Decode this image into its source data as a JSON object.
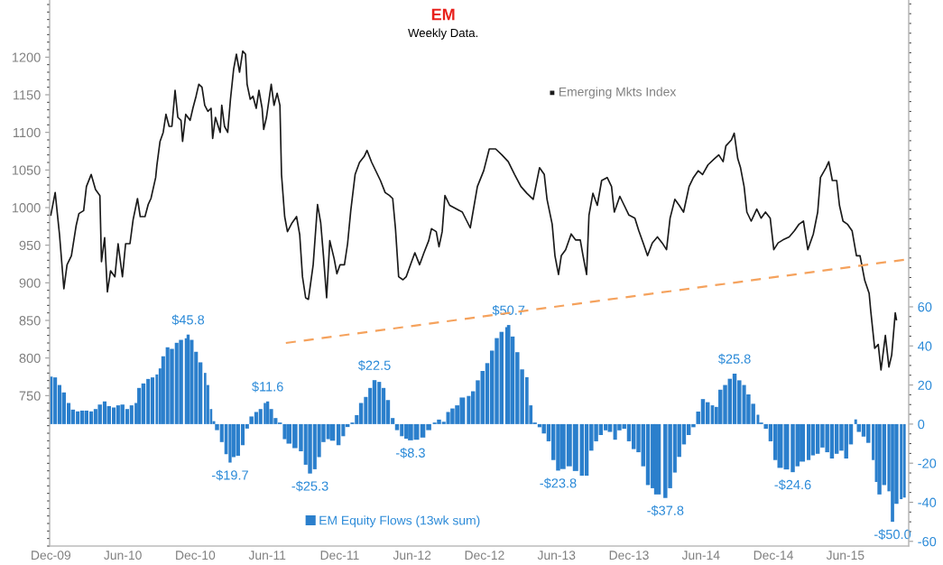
{
  "chart_data": {
    "type": "line",
    "title": "EM",
    "subtitle": "Weekly Data.",
    "xlim": [
      "2009-11-28",
      "2015-11-08"
    ],
    "xticks": [
      {
        "value": "2009-12-01",
        "label": "Dec-09"
      },
      {
        "value": "2010-06-01",
        "label": "Jun-10"
      },
      {
        "value": "2010-12-01",
        "label": "Dec-10"
      },
      {
        "value": "2011-06-01",
        "label": "Jun-11"
      },
      {
        "value": "2011-12-01",
        "label": "Dec-11"
      },
      {
        "value": "2012-06-01",
        "label": "Jun-12"
      },
      {
        "value": "2012-12-01",
        "label": "Dec-12"
      },
      {
        "value": "2013-06-01",
        "label": "Jun-13"
      },
      {
        "value": "2013-12-01",
        "label": "Dec-13"
      },
      {
        "value": "2014-06-01",
        "label": "Jun-14"
      },
      {
        "value": "2014-12-01",
        "label": "Dec-14"
      },
      {
        "value": "2015-06-01",
        "label": "Jun-15"
      }
    ],
    "ylim": [
      550,
      1276
    ],
    "yticks": [
      750,
      800,
      850,
      900,
      950,
      1000,
      1050,
      1100,
      1150,
      1200
    ],
    "y2lim": [
      -62.4,
      217
    ],
    "y2ticks": [
      -60,
      -40,
      -20,
      0,
      20,
      40,
      60
    ],
    "legend": "bottom",
    "grid": false,
    "series": [
      {
        "name": "Emerging Mkts Index",
        "color": "#1a1a1a",
        "x": [
          "2009-12-01",
          "2009-12-12",
          "2009-12-23",
          "2010-01-03",
          "2010-01-11",
          "2010-01-22",
          "2010-02-03",
          "2010-02-10",
          "2010-02-22",
          "2010-03-01",
          "2010-03-13",
          "2010-03-24",
          "2010-04-04",
          "2010-04-08",
          "2010-04-16",
          "2010-04-23",
          "2010-05-01",
          "2010-05-12",
          "2010-05-20",
          "2010-05-31",
          "2010-06-08",
          "2010-06-19",
          "2010-06-27",
          "2010-07-08",
          "2010-07-15",
          "2010-07-27",
          "2010-08-04",
          "2010-08-11",
          "2010-08-23",
          "2010-08-26",
          "2010-09-03",
          "2010-09-11",
          "2010-09-18",
          "2010-09-26",
          "2010-10-03",
          "2010-10-11",
          "2010-10-18",
          "2010-10-26",
          "2010-10-30",
          "2010-11-07",
          "2010-11-18",
          "2010-11-25",
          "2010-12-03",
          "2010-12-10",
          "2010-12-18",
          "2010-12-25",
          "2011-01-02",
          "2011-01-10",
          "2011-01-14",
          "2011-01-21",
          "2011-02-02",
          "2011-02-06",
          "2011-02-13",
          "2011-02-21",
          "2011-02-28",
          "2011-03-08",
          "2011-03-15",
          "2011-03-23",
          "2011-03-31",
          "2011-04-07",
          "2011-04-11",
          "2011-04-19",
          "2011-04-26",
          "2011-05-04",
          "2011-05-11",
          "2011-05-19",
          "2011-05-23",
          "2011-05-30",
          "2011-06-11",
          "2011-06-18",
          "2011-06-26",
          "2011-07-03",
          "2011-07-07",
          "2011-07-15",
          "2011-07-22",
          "2011-08-03",
          "2011-08-14",
          "2011-08-22",
          "2011-08-29",
          "2011-09-06",
          "2011-09-13",
          "2011-09-25",
          "2011-10-06",
          "2011-10-14",
          "2011-10-21",
          "2011-10-29",
          "2011-11-06",
          "2011-11-17",
          "2011-11-24",
          "2011-12-02",
          "2011-12-13",
          "2011-12-21",
          "2011-12-29",
          "2012-01-09",
          "2012-01-20",
          "2012-02-01",
          "2012-02-08",
          "2012-02-20",
          "2012-03-02",
          "2012-03-13",
          "2012-03-25",
          "2012-04-05",
          "2012-04-13",
          "2012-04-20",
          "2012-04-28",
          "2012-05-09",
          "2012-05-17",
          "2012-05-28",
          "2012-06-08",
          "2012-06-20",
          "2012-07-01",
          "2012-07-13",
          "2012-07-20",
          "2012-08-01",
          "2012-08-08",
          "2012-08-16",
          "2012-08-23",
          "2012-09-04",
          "2012-10-06",
          "2012-10-26",
          "2012-11-13",
          "2012-11-29",
          "2012-12-13",
          "2012-12-29",
          "2013-01-14",
          "2013-01-30",
          "2013-02-15",
          "2013-03-03",
          "2013-03-18",
          "2013-04-03",
          "2013-04-19",
          "2013-05-01",
          "2013-05-08",
          "2013-05-21",
          "2013-05-28",
          "2013-06-06",
          "2013-06-13",
          "2013-06-24",
          "2013-07-08",
          "2013-07-19",
          "2013-07-31",
          "2013-08-07",
          "2013-08-16",
          "2013-08-22",
          "2013-09-01",
          "2013-09-12",
          "2013-09-23",
          "2013-10-07",
          "2013-10-18",
          "2013-10-25",
          "2013-11-08",
          "2013-11-19",
          "2013-12-01",
          "2013-12-16",
          "2013-12-26",
          "2014-01-06",
          "2014-01-17",
          "2014-01-29",
          "2014-02-11",
          "2014-02-23",
          "2014-03-06",
          "2014-03-15",
          "2014-03-27",
          "2014-04-07",
          "2014-04-18",
          "2014-05-02",
          "2014-05-13",
          "2014-05-25",
          "2014-06-05",
          "2014-06-19",
          "2014-07-05",
          "2014-07-16",
          "2014-07-27",
          "2014-08-03",
          "2014-08-17",
          "2014-08-24",
          "2014-09-02",
          "2014-09-09",
          "2014-09-18",
          "2014-09-25",
          "2014-10-06",
          "2014-10-20",
          "2014-10-31",
          "2014-11-11",
          "2014-11-23",
          "2014-12-02",
          "2014-12-13",
          "2014-12-25",
          "2015-01-10",
          "2015-01-23",
          "2015-02-04",
          "2015-02-15",
          "2015-02-26",
          "2015-03-12",
          "2015-03-23",
          "2015-03-30",
          "2015-04-13",
          "2015-04-20",
          "2015-04-29",
          "2015-05-10",
          "2015-05-17",
          "2015-05-26",
          "2015-06-06",
          "2015-06-18",
          "2015-06-29",
          "2015-07-08",
          "2015-07-20",
          "2015-07-31",
          "2015-08-04",
          "2015-08-14",
          "2015-08-23",
          "2015-08-30",
          "2015-09-10",
          "2015-09-19",
          "2015-09-26",
          "2015-10-05",
          "2015-10-08"
        ],
        "values": [
          990,
          1020,
          964,
          892,
          924,
          936,
          976,
          992,
          996,
          1028,
          1044,
          1024,
          1016,
          928,
          960,
          888,
          916,
          908,
          952,
          908,
          952,
          952,
          984,
          1012,
          988,
          988,
          1004,
          1012,
          1040,
          1056,
          1088,
          1100,
          1124,
          1108,
          1108,
          1156,
          1120,
          1116,
          1088,
          1124,
          1116,
          1132,
          1148,
          1164,
          1160,
          1136,
          1128,
          1132,
          1092,
          1120,
          1100,
          1136,
          1108,
          1100,
          1144,
          1184,
          1204,
          1180,
          1208,
          1204,
          1164,
          1144,
          1148,
          1132,
          1156,
          1132,
          1104,
          1120,
          1164,
          1136,
          1152,
          1136,
          1044,
          988,
          968,
          980,
          988,
          964,
          908,
          880,
          878,
          924,
          1004,
          980,
          936,
          880,
          956,
          932,
          912,
          924,
          924,
          952,
          996,
          1044,
          1060,
          1068,
          1076,
          1060,
          1048,
          1036,
          1020,
          1016,
          1012,
          972,
          908,
          904,
          908,
          924,
          940,
          924,
          940,
          956,
          972,
          968,
          948,
          968,
          1016,
          1003,
          994,
          973,
          1028,
          1049,
          1078,
          1078,
          1070,
          1061,
          1044,
          1028,
          1019,
          1011,
          1053,
          1044,
          1011,
          978,
          936,
          911,
          936,
          944,
          965,
          957,
          957,
          936,
          911,
          990,
          1019,
          1003,
          1036,
          1040,
          1028,
          994,
          1015,
          1003,
          990,
          986,
          969,
          953,
          936,
          953,
          961,
          953,
          944,
          986,
          1011,
          1003,
          994,
          1028,
          1040,
          1049,
          1044,
          1057,
          1065,
          1070,
          1061,
          1082,
          1090,
          1099,
          1065,
          1053,
          1028,
          994,
          982,
          998,
          986,
          994,
          986,
          944,
          953,
          957,
          961,
          969,
          978,
          982,
          944,
          965,
          994,
          1040,
          1053,
          1061,
          1036,
          1036,
          1003,
          982,
          978,
          969,
          936,
          936,
          903,
          886,
          863,
          813,
          818,
          784,
          830,
          788,
          804,
          860,
          851
        ]
      },
      {
        "name": "EM Equity Flows (13wk sum)",
        "type": "bar",
        "axis": "y2",
        "color": "#2b7fcc",
        "x": [
          "2009-12-01",
          "2009-12-12",
          "2009-12-23",
          "2010-01-03",
          "2010-01-15",
          "2010-01-26",
          "2010-02-07",
          "2010-02-18",
          "2010-03-01",
          "2010-03-13",
          "2010-03-24",
          "2010-04-04",
          "2010-04-16",
          "2010-04-27",
          "2010-05-09",
          "2010-05-20",
          "2010-05-31",
          "2010-06-12",
          "2010-06-23",
          "2010-07-04",
          "2010-07-12",
          "2010-07-23",
          "2010-08-04",
          "2010-08-15",
          "2010-08-26",
          "2010-09-03",
          "2010-09-11",
          "2010-09-22",
          "2010-10-03",
          "2010-10-15",
          "2010-10-26",
          "2010-11-07",
          "2010-11-13",
          "2010-11-22",
          "2010-12-03",
          "2010-12-14",
          "2010-12-26",
          "2011-01-02",
          "2011-01-10",
          "2011-01-17",
          "2011-01-25",
          "2011-02-06",
          "2011-02-17",
          "2011-02-27",
          "2011-03-08",
          "2011-03-19",
          "2011-03-31",
          "2011-04-11",
          "2011-04-22",
          "2011-05-04",
          "2011-05-15",
          "2011-05-26",
          "2011-06-02",
          "2011-06-11",
          "2011-06-22",
          "2011-07-03",
          "2011-07-15",
          "2011-07-26",
          "2011-08-10",
          "2011-08-25",
          "2011-09-06",
          "2011-09-17",
          "2011-09-29",
          "2011-10-10",
          "2011-10-21",
          "2011-11-02",
          "2011-11-13",
          "2011-11-28",
          "2011-12-10",
          "2011-12-21",
          "2012-01-02",
          "2012-01-13",
          "2012-01-24",
          "2012-02-05",
          "2012-02-16",
          "2012-02-27",
          "2012-03-10",
          "2012-03-21",
          "2012-04-01",
          "2012-04-13",
          "2012-04-24",
          "2012-05-06",
          "2012-05-17",
          "2012-05-28",
          "2012-06-12",
          "2012-06-28",
          "2012-07-13",
          "2012-07-28",
          "2012-08-08",
          "2012-08-20",
          "2012-08-31",
          "2012-09-11",
          "2012-09-23",
          "2012-10-06",
          "2012-10-22",
          "2012-11-02",
          "2012-11-14",
          "2012-11-26",
          "2012-12-08",
          "2012-12-20",
          "2013-01-01",
          "2013-01-13",
          "2013-01-25",
          "2013-01-31",
          "2013-02-10",
          "2013-02-22",
          "2013-03-06",
          "2013-03-18",
          "2013-03-28",
          "2013-04-07",
          "2013-04-19",
          "2013-04-30",
          "2013-05-12",
          "2013-05-24",
          "2013-06-05",
          "2013-06-17",
          "2013-07-03",
          "2013-07-19",
          "2013-08-04",
          "2013-08-16",
          "2013-08-28",
          "2013-09-09",
          "2013-09-21",
          "2013-10-03",
          "2013-10-14",
          "2013-10-27",
          "2013-11-07",
          "2013-11-19",
          "2013-12-01",
          "2013-12-13",
          "2013-12-25",
          "2014-01-06",
          "2014-01-18",
          "2014-01-30",
          "2014-02-11",
          "2014-03-03",
          "2014-03-15",
          "2014-03-27",
          "2014-04-07",
          "2014-04-19",
          "2014-05-01",
          "2014-05-13",
          "2014-05-25",
          "2014-06-06",
          "2014-06-18",
          "2014-06-30",
          "2014-07-10",
          "2014-07-20",
          "2014-08-01",
          "2014-08-13",
          "2014-08-25",
          "2014-09-06",
          "2014-09-18",
          "2014-09-29",
          "2014-10-11",
          "2014-10-23",
          "2014-10-31",
          "2014-11-12",
          "2014-11-24",
          "2014-12-06",
          "2014-12-18",
          "2015-01-03",
          "2015-01-19",
          "2015-01-31",
          "2015-02-12",
          "2015-02-28",
          "2015-03-11",
          "2015-03-23",
          "2015-04-04",
          "2015-04-16",
          "2015-04-28",
          "2015-05-10",
          "2015-05-22",
          "2015-06-03",
          "2015-06-15",
          "2015-06-27",
          "2015-07-05",
          "2015-07-17",
          "2015-07-29",
          "2015-08-10",
          "2015-08-18",
          "2015-08-26",
          "2015-09-07",
          "2015-09-19",
          "2015-09-28",
          "2015-10-08",
          "2015-10-20",
          "2015-10-28"
        ],
        "values": [
          24.3,
          23.9,
          20,
          16.2,
          10.8,
          7.4,
          6.5,
          6.9,
          6.9,
          6.5,
          7.7,
          10,
          11.6,
          9.2,
          8.5,
          9.6,
          10,
          7.7,
          9.6,
          10.8,
          18.5,
          20.8,
          23.1,
          23.9,
          25.4,
          28.5,
          34.7,
          39.3,
          38.5,
          41.6,
          43.1,
          43.9,
          45.8,
          43.1,
          37,
          31.6,
          26.2,
          20,
          7.7,
          1.5,
          -3.1,
          -9.2,
          -15.4,
          -19.7,
          -16.9,
          -16.2,
          -10.8,
          -2.3,
          3.9,
          6.2,
          7.7,
          10.8,
          11.6,
          7.7,
          3.1,
          0.8,
          -7.7,
          -10,
          -12.3,
          -13.9,
          -20.8,
          -25.3,
          -23.1,
          -16.9,
          -9.2,
          -7.7,
          -8.5,
          -10.8,
          -6.2,
          -1.5,
          0.8,
          4.6,
          10.8,
          13.9,
          18.5,
          22.5,
          21.6,
          18.5,
          12.3,
          3.1,
          -3.1,
          -6.2,
          -7.5,
          -8.3,
          -8.0,
          -6.9,
          -3.1,
          0.8,
          2.3,
          1.2,
          6.2,
          8,
          9.6,
          13.6,
          14.4,
          16.8,
          22.4,
          27.2,
          31.2,
          37.6,
          44,
          47.2,
          49.6,
          50.7,
          44.8,
          36.8,
          28,
          24,
          9.6,
          0.8,
          -1.6,
          -4.8,
          -8.8,
          -18.4,
          -23.8,
          -23.0,
          -21.6,
          -24,
          -26.4,
          -26.4,
          -13.6,
          -8.8,
          -5.6,
          -3.2,
          -4,
          -8,
          -3.2,
          -2.4,
          -8.8,
          -12.8,
          -14.4,
          -21.6,
          -31.2,
          -32.8,
          -36,
          -37.8,
          -32.8,
          -24.8,
          -16.8,
          -10.4,
          -5.6,
          -1.6,
          6.4,
          12.8,
          11.2,
          9.6,
          8.8,
          17.6,
          20,
          23.2,
          25.8,
          22.4,
          20,
          15.2,
          10.4,
          4.8,
          0.8,
          -2.4,
          -8.8,
          -18.4,
          -22.4,
          -23.2,
          -24.6,
          -21.6,
          -19.2,
          -18.4,
          -16,
          -15.2,
          -12,
          -14.4,
          -17.6,
          -15.2,
          -13.6,
          -17.6,
          -10.4,
          2.4,
          -4,
          -6.4,
          -9.6,
          -18.4,
          -29.6,
          -36,
          -31.2,
          -34.4,
          -50.0,
          -40.8,
          -38.4,
          -37.6
        ],
        "value_labels": [
          null,
          null,
          null,
          null,
          null,
          null,
          null,
          null,
          null,
          null,
          null,
          null,
          null,
          null,
          null,
          null,
          null,
          null,
          null,
          null,
          null,
          null,
          null,
          null,
          null,
          null,
          null,
          null,
          null,
          null,
          null,
          null,
          "$45.8",
          null,
          null,
          null,
          null,
          null,
          null,
          null,
          null,
          null,
          null,
          "-$19.7",
          null,
          null,
          null,
          null,
          null,
          null,
          null,
          null,
          "$11.6",
          null,
          null,
          null,
          null,
          null,
          null,
          null,
          null,
          "-$25.3",
          null,
          null,
          null,
          null,
          null,
          null,
          null,
          null,
          null,
          null,
          null,
          null,
          null,
          "$22.5",
          null,
          null,
          null,
          null,
          null,
          null,
          null,
          "-$8.3",
          null,
          null,
          null,
          null,
          null,
          null,
          null,
          null,
          null,
          null,
          null,
          null,
          null,
          null,
          null,
          null,
          null,
          null,
          null,
          "$50.7",
          null,
          null,
          null,
          null,
          null,
          null,
          null,
          null,
          null,
          null,
          "-$23.8",
          null,
          null,
          null,
          null,
          null,
          null,
          null,
          null,
          null,
          null,
          null,
          null,
          null,
          null,
          null,
          null,
          null,
          null,
          null,
          null,
          "-$37.8",
          null,
          null,
          null,
          null,
          null,
          null,
          null,
          null,
          null,
          null,
          null,
          null,
          null,
          null,
          "$25.8",
          null,
          null,
          null,
          null,
          null,
          null,
          null,
          null,
          null,
          null,
          null,
          "-$24.6",
          null,
          null,
          null,
          null,
          null,
          null,
          null,
          null,
          null,
          null,
          null,
          null,
          null,
          null,
          null,
          null,
          null,
          null,
          null,
          null,
          null,
          "-$50.0",
          null,
          null,
          null
        ]
      },
      {
        "type": "line",
        "line_style": "dashed",
        "color": "#f5a25d",
        "x": [
          "2011-07-18",
          "2015-11-01"
        ],
        "values": [
          820,
          931
        ]
      }
    ]
  }
}
